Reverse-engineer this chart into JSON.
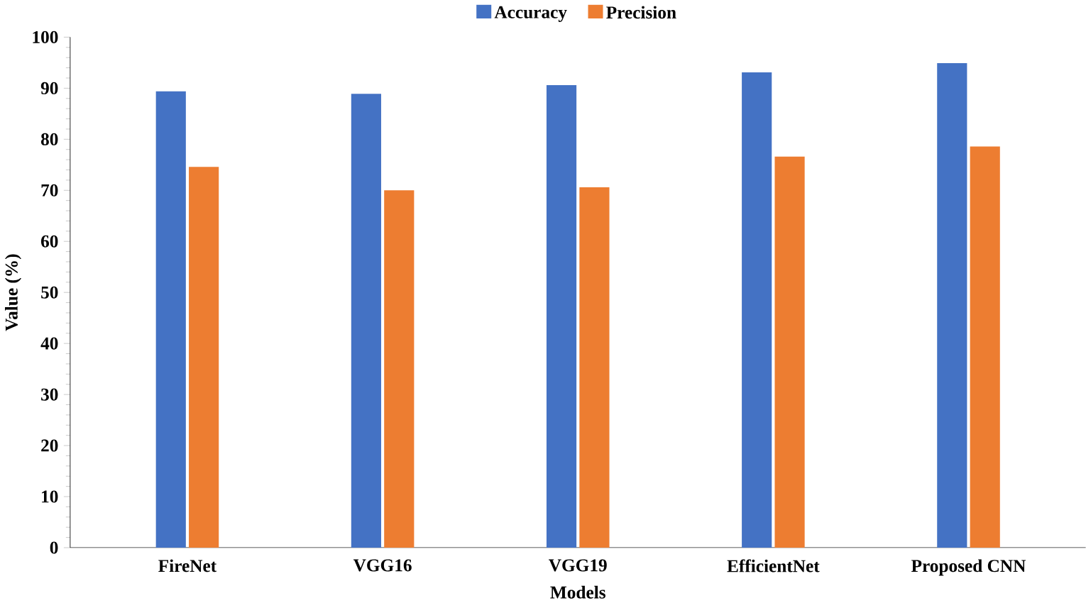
{
  "chart_data": {
    "type": "bar",
    "xlabel": "Models",
    "ylabel": "Value (%)",
    "categories": [
      "FireNet",
      "VGG16",
      "VGG19",
      "EfficientNet",
      "Proposed CNN"
    ],
    "series": [
      {
        "name": "Accuracy",
        "color": "#4472c4",
        "values": [
          89.4,
          88.9,
          90.6,
          93.1,
          94.9
        ]
      },
      {
        "name": "Precision",
        "color": "#ed7d31",
        "values": [
          74.6,
          70.0,
          70.6,
          76.6,
          78.6
        ]
      }
    ],
    "ylim": [
      0,
      100
    ],
    "yticks": [
      0,
      10,
      20,
      30,
      40,
      50,
      60,
      70,
      80,
      90,
      100
    ],
    "grid": false,
    "legend": "top"
  }
}
